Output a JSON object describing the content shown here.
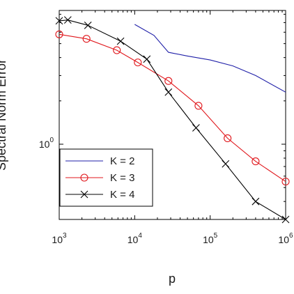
{
  "chart_data": {
    "type": "line",
    "xlabel": "p",
    "ylabel": "Spectral Norm Error",
    "x_scale": "log",
    "y_scale": "log",
    "xlim": [
      1000,
      1000000
    ],
    "ylim": [
      0.3,
      8.5
    ],
    "x_ticks": [
      {
        "value": 1000,
        "base": "10",
        "exp": "3"
      },
      {
        "value": 10000,
        "base": "10",
        "exp": "4"
      },
      {
        "value": 100000,
        "base": "10",
        "exp": "5"
      },
      {
        "value": 1000000,
        "base": "10",
        "exp": "6"
      }
    ],
    "y_ticks": [
      {
        "value": 1,
        "base": "10",
        "exp": "0"
      }
    ],
    "legend_position": "bottom-left",
    "series": [
      {
        "name": "K = 2",
        "color": "#1f1fa8",
        "marker": "none",
        "x": [
          10000,
          18000,
          28000,
          50000,
          100000,
          200000,
          400000,
          1000000
        ],
        "y": [
          6.8,
          5.7,
          4.35,
          4.1,
          3.85,
          3.5,
          3.0,
          2.3
        ]
      },
      {
        "name": "K = 3",
        "color": "#e0161b",
        "marker": "circle",
        "x": [
          1000,
          2300,
          5800,
          11000,
          28000,
          70000,
          170000,
          400000,
          1000000
        ],
        "y": [
          5.8,
          5.4,
          4.5,
          3.7,
          2.75,
          1.85,
          1.1,
          0.76,
          0.55
        ]
      },
      {
        "name": "K = 4",
        "color": "#000000",
        "marker": "x",
        "x": [
          1000,
          1300,
          2400,
          6500,
          14500,
          28000,
          65000,
          160000,
          400000,
          1000000
        ],
        "y": [
          7.2,
          7.3,
          6.7,
          5.2,
          3.9,
          2.3,
          1.3,
          0.73,
          0.4,
          0.3
        ]
      }
    ]
  }
}
